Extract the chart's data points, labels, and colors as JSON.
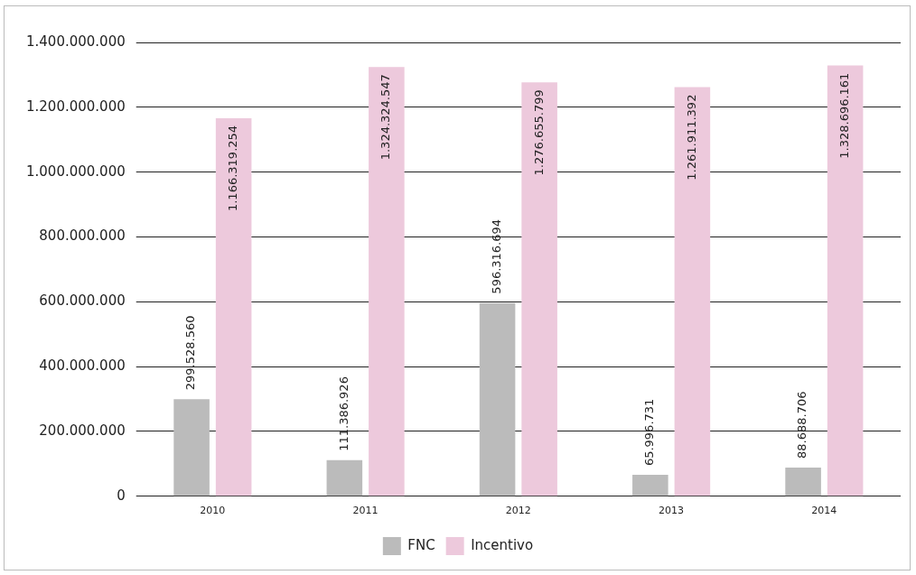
{
  "chart_data": {
    "type": "bar",
    "categories": [
      "2010",
      "2011",
      "2012",
      "2013",
      "2014"
    ],
    "series": [
      {
        "name": "FNC",
        "color": "#bbbbbb",
        "values": [
          299528560,
          111386926,
          596316694,
          65996731,
          88688706
        ],
        "value_labels": [
          "299.528.560",
          "111.386.926",
          "596.316.694",
          "65.996.731",
          "88.688.706"
        ]
      },
      {
        "name": "Incentivo",
        "color": "#edc9dc",
        "values": [
          1166319254,
          1324324547,
          1276655799,
          1261911392,
          1328696161
        ],
        "value_labels": [
          "1.166.319.254",
          "1.324.324.547",
          "1.276.655.799",
          "1.261.911.392",
          "1.328.696.161"
        ]
      }
    ],
    "ylim": [
      0,
      1400000000
    ],
    "yticks": [
      {
        "value": 0,
        "label": "0"
      },
      {
        "value": 200000000,
        "label": "200.000.000"
      },
      {
        "value": 400000000,
        "label": "400.000.000"
      },
      {
        "value": 600000000,
        "label": "600.000.000"
      },
      {
        "value": 800000000,
        "label": "800.000.000"
      },
      {
        "value": 1000000000,
        "label": "1.000.000.000"
      },
      {
        "value": 1200000000,
        "label": "1.200.000.000"
      },
      {
        "value": 1400000000,
        "label": "1.400.000.000"
      }
    ],
    "grid": "y",
    "legend": "bottom"
  }
}
